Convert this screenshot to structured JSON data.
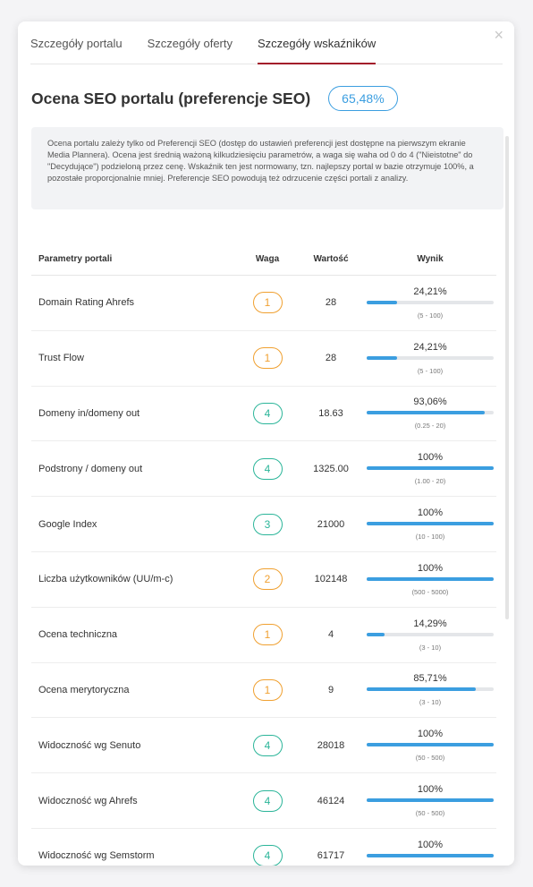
{
  "tabs": [
    "Szczegóły portalu",
    "Szczegóły oferty",
    "Szczegóły wskaźników"
  ],
  "active_tab": 2,
  "close_icon": "×",
  "title": "Ocena SEO portalu (preferencje SEO)",
  "score": "65,48%",
  "info": "Ocena portalu zależy tylko od Preferencji SEO (dostęp do ustawień preferencji jest dostępne na pierwszym ekranie Media Plannera). Ocena jest średnią ważoną kilkudziesięciu parametrów, a waga się waha od 0 do 4 (\"Nieistotne\" do \"Decydujące\") podzieloną przez cenę. Wskaźnik ten jest normowany, tzn. najlepszy portal w bazie otrzymuje 100%, a pozostałe proporcjonalnie mniej. Preferencje SEO powodują też odrzucenie części portali z analizy.",
  "columns": {
    "name": "Parametry portali",
    "weight": "Waga",
    "value": "Wartość",
    "result": "Wynik"
  },
  "colors": {
    "accent": "#3b9ee0",
    "tab_active": "#a31d2b",
    "weight_orange": "#f0a030",
    "weight_green": "#2bb599"
  },
  "rows": [
    {
      "name": "Domain Rating Ahrefs",
      "weight": "1",
      "weight_color": "orange",
      "value": "28",
      "result": "24,21%",
      "fill": 0.2421,
      "range": "(5 - 100)"
    },
    {
      "name": "Trust Flow",
      "weight": "1",
      "weight_color": "orange",
      "value": "28",
      "result": "24,21%",
      "fill": 0.2421,
      "range": "(5 - 100)"
    },
    {
      "name": "Domeny in/domeny out",
      "weight": "4",
      "weight_color": "green",
      "value": "18.63",
      "result": "93,06%",
      "fill": 0.9306,
      "range": "(0.25 - 20)"
    },
    {
      "name": "Podstrony / domeny out",
      "weight": "4",
      "weight_color": "green",
      "value": "1325.00",
      "result": "100%",
      "fill": 1,
      "range": "(1.00 - 20)"
    },
    {
      "name": "Google Index",
      "weight": "3",
      "weight_color": "green",
      "value": "21000",
      "result": "100%",
      "fill": 1,
      "range": "(10 - 100)"
    },
    {
      "name": "Liczba użytkowników (UU/m-c)",
      "weight": "2",
      "weight_color": "orange",
      "value": "102148",
      "result": "100%",
      "fill": 1,
      "range": "(500 - 5000)"
    },
    {
      "name": "Ocena techniczna",
      "weight": "1",
      "weight_color": "orange",
      "value": "4",
      "result": "14,29%",
      "fill": 0.1429,
      "range": "(3 - 10)"
    },
    {
      "name": "Ocena merytoryczna",
      "weight": "1",
      "weight_color": "orange",
      "value": "9",
      "result": "85,71%",
      "fill": 0.8571,
      "range": "(3 - 10)"
    },
    {
      "name": "Widoczność wg Senuto",
      "weight": "4",
      "weight_color": "green",
      "value": "28018",
      "result": "100%",
      "fill": 1,
      "range": "(50 - 500)"
    },
    {
      "name": "Widoczność wg Ahrefs",
      "weight": "4",
      "weight_color": "green",
      "value": "46124",
      "result": "100%",
      "fill": 1,
      "range": "(50 - 500)"
    },
    {
      "name": "Widoczność wg Semstorm",
      "weight": "4",
      "weight_color": "green",
      "value": "61717",
      "result": "100%",
      "fill": 1,
      "range": "(50 - 500)"
    }
  ]
}
